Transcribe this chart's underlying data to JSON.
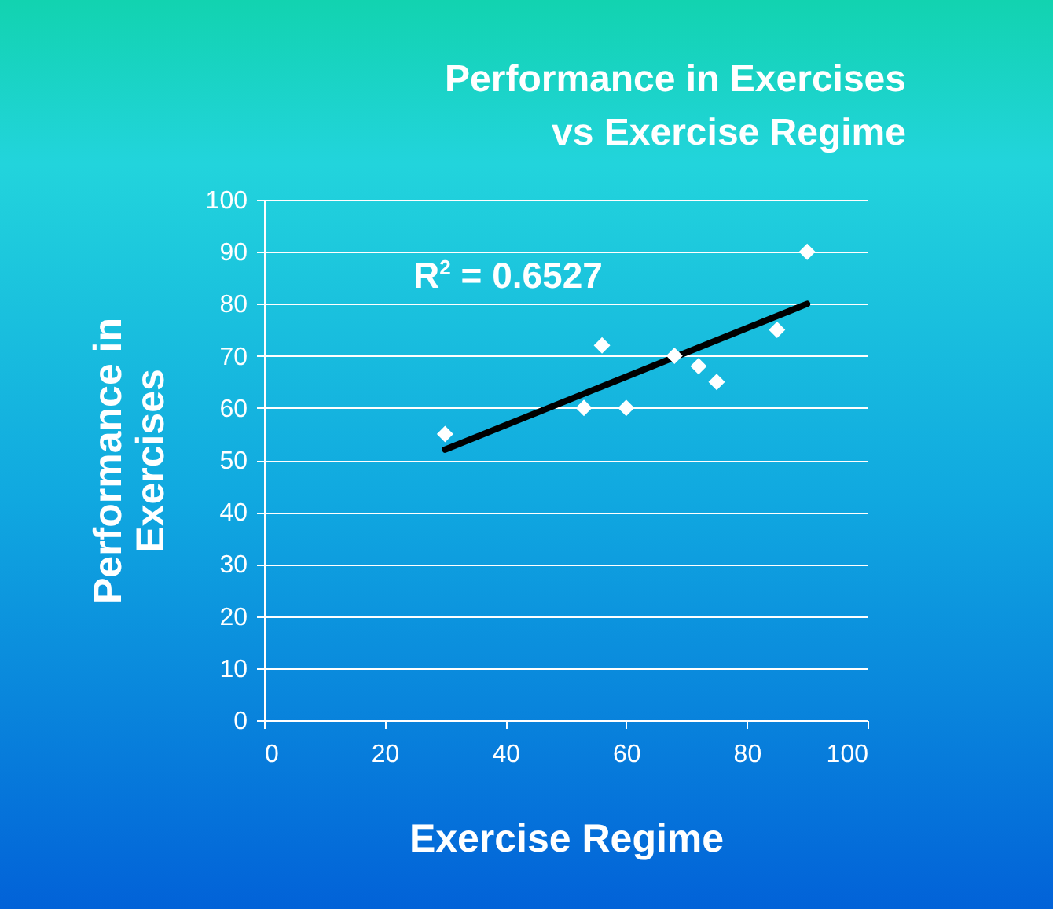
{
  "chart_data": {
    "type": "scatter",
    "title": [
      "Performance in Exercises",
      "vs Exercise Regime"
    ],
    "xlabel": "Exercise Regime",
    "ylabel": "Performance in Exercises",
    "xlim": [
      0,
      100
    ],
    "xticks": [
      0,
      20,
      40,
      60,
      80,
      100
    ],
    "ylim": [
      0,
      100
    ],
    "yticks": [
      0,
      10,
      20,
      30,
      40,
      50,
      60,
      70,
      80,
      90,
      100
    ],
    "grid": "y",
    "series": [
      {
        "marker": "diamond",
        "color": "#ffffff",
        "x": [
          30,
          53,
          56,
          60,
          68,
          72,
          75,
          85,
          90
        ],
        "values": [
          55,
          60,
          72,
          60,
          70,
          68,
          65,
          75,
          90
        ]
      },
      {
        "type": "line",
        "marker": "none",
        "color": "#000000",
        "x": [
          30,
          90
        ],
        "values": [
          52,
          80
        ]
      }
    ],
    "annotations": [
      "R$^{2}$ = 0.6527"
    ]
  }
}
